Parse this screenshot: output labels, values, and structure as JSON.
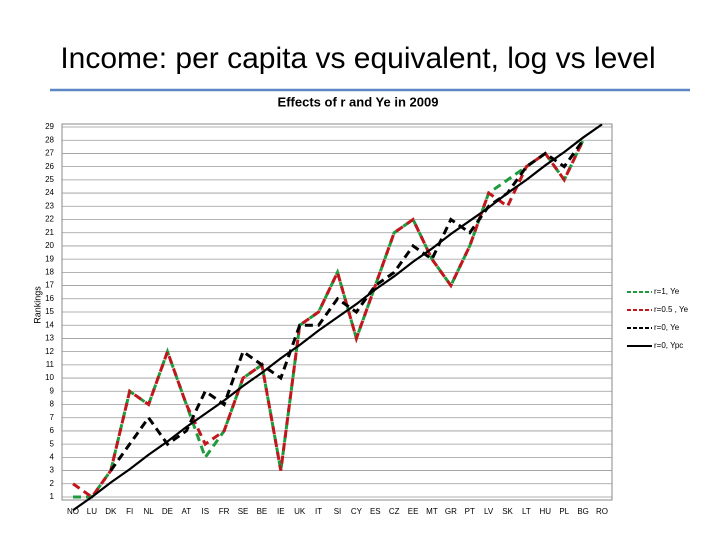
{
  "chart_data": {
    "type": "line",
    "title": "Income: per capita vs equivalent, log vs level",
    "subtitle": "Effects of r and Ye in 2009",
    "y_label": "Rankings",
    "categories": [
      "NO",
      "LU",
      "DK",
      "FI",
      "NL",
      "DE",
      "AT",
      "IS",
      "FR",
      "SE",
      "BE",
      "IE",
      "UK",
      "IT",
      "SI",
      "CY",
      "ES",
      "CZ",
      "EE",
      "MT",
      "GR",
      "PT",
      "LV",
      "SK",
      "LT",
      "HU",
      "PL",
      "BG",
      "RO"
    ],
    "series": [
      {
        "name": "r=1, Ye",
        "color": "#1f9a3c",
        "dash": "8,5",
        "values": [
          1,
          1,
          3,
          9,
          8,
          12,
          8,
          4,
          6,
          10,
          11,
          3,
          14,
          15,
          18,
          13,
          17,
          21,
          22,
          19,
          17,
          20,
          24,
          25,
          26,
          27,
          25,
          28,
          null
        ]
      },
      {
        "name": "r=0.5 , Ye",
        "color": "#c0171d",
        "dash": "8,5",
        "values": [
          2,
          1,
          3,
          9,
          8,
          12,
          8,
          5,
          6,
          10,
          11,
          3,
          14,
          15,
          18,
          13,
          17,
          21,
          22,
          19,
          17,
          20,
          24,
          23,
          26,
          27,
          25,
          28,
          null
        ]
      },
      {
        "name": "r=0, Ye",
        "color": "#000000",
        "dash": "8,5",
        "values": [
          null,
          null,
          3,
          5,
          7,
          5,
          6,
          9,
          8,
          12,
          11,
          10,
          14,
          14,
          16,
          15,
          17,
          18,
          20,
          19,
          22,
          21,
          23,
          24,
          26,
          27,
          26,
          28,
          null
        ]
      },
      {
        "name": "r=0, Ypc",
        "color": "#000000",
        "dash": "none",
        "values": [
          0,
          1.0,
          2.1,
          3.1,
          4.2,
          5.2,
          6.3,
          7.3,
          8.3,
          9.4,
          10.4,
          11.5,
          12.5,
          13.6,
          14.6,
          15.6,
          16.7,
          17.7,
          18.8,
          19.8,
          20.9,
          21.9,
          22.9,
          24.0,
          25.0,
          26.1,
          27.1,
          28.2,
          29.2
        ]
      }
    ],
    "ylim": [
      1,
      29
    ],
    "yticks": [
      1,
      2,
      3,
      4,
      5,
      6,
      7,
      8,
      9,
      10,
      11,
      12,
      13,
      14,
      15,
      16,
      17,
      18,
      19,
      20,
      21,
      22,
      23,
      24,
      25,
      26,
      27,
      28,
      29
    ],
    "grid": true,
    "legend": "right"
  }
}
